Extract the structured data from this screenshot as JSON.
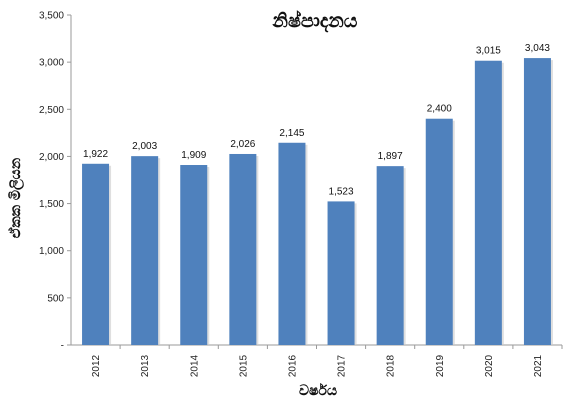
{
  "chart_data": {
    "type": "bar",
    "title": "නිෂ්පාදනය",
    "xlabel": "වර්ෂය",
    "ylabel": "ඒකක මිලියන",
    "categories": [
      "2012",
      "2013",
      "2014",
      "2015",
      "2016",
      "2017",
      "2018",
      "2019",
      "2020",
      "2021"
    ],
    "values": [
      1922,
      2003,
      1909,
      2026,
      2145,
      1523,
      1897,
      2400,
      3015,
      3043
    ],
    "data_labels": [
      "1,922",
      "2,003",
      "1,909",
      "2,026",
      "2,145",
      "1,523",
      "1,897",
      "2,400",
      "3,015",
      "3,043"
    ],
    "ylim": [
      0,
      3500
    ],
    "yticks": [
      0,
      500,
      1000,
      1500,
      2000,
      2500,
      3000,
      3500
    ],
    "ytick_labels": [
      "-",
      "500",
      "1,000",
      "1,500",
      "2,000",
      "2,500",
      "3,000",
      "3,500"
    ],
    "grid": false,
    "legend": "none",
    "bar_color": "#4F81BD"
  }
}
